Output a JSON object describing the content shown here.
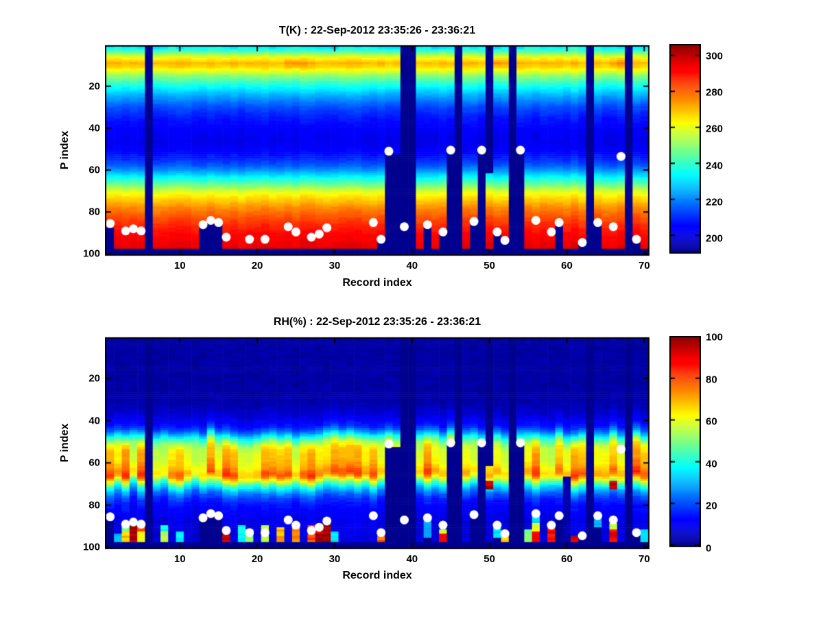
{
  "figure": {
    "background": "#ffffff",
    "text_color": "#000000"
  },
  "chart_data": {
    "note": "two stacked heatmaps, see charts array"
  },
  "charts": [
    {
      "id": "temperature",
      "type": "heatmap",
      "title": "T(K) : 22-Sep-2012 23:35:26 - 23:36:21",
      "xlabel": "Record index",
      "ylabel": "P index",
      "x_ticks": [
        10,
        20,
        30,
        40,
        50,
        60,
        70
      ],
      "y_ticks": [
        20,
        40,
        60,
        80,
        100
      ],
      "x_range": [
        1,
        70
      ],
      "y_range": [
        1,
        100
      ],
      "y_axis_reversed": true,
      "n_records": 70,
      "n_levels": 100,
      "colormap": "jet",
      "missing_color": "#00008F",
      "marker_color": "#FFFFFF",
      "colorbar": {
        "ticks": [
          200,
          220,
          240,
          260,
          280,
          300
        ],
        "min": 191,
        "max": 306
      },
      "default_surface": 97,
      "profile": [
        [
          1,
          231
        ],
        [
          3,
          240
        ],
        [
          5,
          253
        ],
        [
          7,
          264
        ],
        [
          9,
          271
        ],
        [
          11,
          267
        ],
        [
          13,
          259
        ],
        [
          15,
          250
        ],
        [
          17,
          244
        ],
        [
          19,
          238
        ],
        [
          21,
          233
        ],
        [
          24,
          226
        ],
        [
          27,
          220
        ],
        [
          30,
          214
        ],
        [
          35,
          208
        ],
        [
          40,
          204
        ],
        [
          45,
          202
        ],
        [
          48,
          202
        ],
        [
          52,
          206
        ],
        [
          55,
          210
        ],
        [
          58,
          216
        ],
        [
          60,
          222
        ],
        [
          62,
          229
        ],
        [
          64,
          236
        ],
        [
          66,
          243
        ],
        [
          68,
          250
        ],
        [
          70,
          258
        ],
        [
          72,
          264
        ],
        [
          74,
          268
        ],
        [
          76,
          272
        ],
        [
          78,
          276
        ],
        [
          80,
          279
        ],
        [
          83,
          283
        ],
        [
          86,
          287
        ],
        [
          89,
          290
        ],
        [
          92,
          293
        ],
        [
          95,
          295
        ],
        [
          97,
          296
        ]
      ],
      "missing_records": [
        6,
        39,
        40,
        46,
        53,
        63,
        68
      ],
      "surfaces": {
        "1": 87,
        "13": 86,
        "14": 84,
        "15": 85,
        "36": 93,
        "37": 52,
        "38": 52,
        "42": 87,
        "44": 90,
        "45": 51,
        "48": 85,
        "49": 51,
        "51": 90,
        "52": 94,
        "54": 51,
        "59": 86,
        "62": 95,
        "64": 85,
        "69": 94
      },
      "top_start": {
        "50": 62
      },
      "warm_spots": {
        "p_range": [
          6,
          12
        ],
        "records": {
          "24": 4,
          "25": 5,
          "26": 3,
          "51": 6,
          "52": 4,
          "66": 5,
          "67": 6
        }
      },
      "markers": [
        [
          1,
          85.5
        ],
        [
          3,
          89
        ],
        [
          4,
          88
        ],
        [
          5,
          89
        ],
        [
          13,
          86
        ],
        [
          14,
          84
        ],
        [
          15,
          85
        ],
        [
          16,
          92
        ],
        [
          19,
          93
        ],
        [
          21,
          93
        ],
        [
          24,
          87
        ],
        [
          25,
          89.5
        ],
        [
          27,
          92
        ],
        [
          28,
          90.5
        ],
        [
          29,
          87.5
        ],
        [
          35,
          85
        ],
        [
          36,
          93
        ],
        [
          37,
          51
        ],
        [
          39,
          87
        ],
        [
          42,
          86
        ],
        [
          44,
          89.5
        ],
        [
          45,
          50.5
        ],
        [
          48,
          84.5
        ],
        [
          49,
          50.5
        ],
        [
          51,
          89.5
        ],
        [
          52,
          93.5
        ],
        [
          54,
          50.5
        ],
        [
          56,
          84
        ],
        [
          58,
          89.5
        ],
        [
          59,
          85
        ],
        [
          62,
          94.5
        ],
        [
          64,
          85
        ],
        [
          66,
          87
        ],
        [
          67,
          53.5
        ],
        [
          69,
          93
        ]
      ]
    },
    {
      "id": "relative-humidity",
      "type": "heatmap",
      "title": "RH(%) : 22-Sep-2012 23:35:26 - 23:36:21",
      "xlabel": "Record index",
      "ylabel": "P index",
      "x_ticks": [
        10,
        20,
        30,
        40,
        50,
        60,
        70
      ],
      "y_ticks": [
        20,
        40,
        60,
        80,
        100
      ],
      "x_range": [
        1,
        70
      ],
      "y_range": [
        1,
        100
      ],
      "y_axis_reversed": true,
      "n_records": 70,
      "n_levels": 100,
      "colormap": "jet",
      "missing_color": "#00008F",
      "marker_color": "#FFFFFF",
      "colorbar": {
        "ticks": [
          0,
          20,
          40,
          60,
          80,
          100
        ],
        "min": 0,
        "max": 100
      },
      "default_surface": 97,
      "profile": [
        [
          1,
          2
        ],
        [
          25,
          2
        ],
        [
          32,
          3
        ],
        [
          36,
          6
        ],
        [
          40,
          10
        ],
        [
          43,
          16
        ],
        [
          45,
          24
        ],
        [
          47,
          36
        ],
        [
          49,
          48
        ],
        [
          51,
          57
        ],
        [
          53,
          62
        ],
        [
          56,
          64
        ],
        [
          58,
          64
        ],
        [
          60,
          66
        ],
        [
          62,
          68
        ],
        [
          64,
          73
        ],
        [
          65,
          74
        ],
        [
          66,
          72
        ],
        [
          67,
          65
        ],
        [
          68,
          58
        ],
        [
          69,
          50
        ],
        [
          70,
          44
        ],
        [
          71,
          38
        ],
        [
          72,
          33
        ],
        [
          74,
          25
        ],
        [
          76,
          19
        ],
        [
          78,
          15
        ],
        [
          80,
          13
        ],
        [
          83,
          11
        ],
        [
          86,
          9
        ],
        [
          90,
          8
        ],
        [
          94,
          8
        ],
        [
          97,
          8
        ]
      ],
      "missing_records": [
        6,
        39,
        40,
        46,
        53,
        63,
        68
      ],
      "surfaces": {
        "1": 87,
        "13": 86,
        "14": 84,
        "15": 85,
        "36": 93,
        "37": 52,
        "38": 52,
        "42": 87,
        "44": 90,
        "45": 51,
        "48": 85,
        "49": 51,
        "51": 90,
        "52": 94,
        "54": 51,
        "59": 86,
        "62": 95,
        "64": 85,
        "69": 94
      },
      "top_start": {
        "50": 62
      },
      "patches": [
        [
          2,
          94,
          97,
          30
        ],
        [
          3,
          90,
          93,
          50
        ],
        [
          3,
          93,
          97,
          68
        ],
        [
          4,
          90,
          97,
          97
        ],
        [
          5,
          90,
          93,
          78
        ],
        [
          5,
          93,
          97,
          60
        ],
        [
          8,
          90,
          93,
          38
        ],
        [
          8,
          93,
          97,
          55
        ],
        [
          10,
          93,
          97,
          35
        ],
        [
          16,
          93,
          97,
          95
        ],
        [
          18,
          90,
          97,
          38
        ],
        [
          19,
          92,
          97,
          50
        ],
        [
          21,
          90,
          97,
          55
        ],
        [
          23,
          91,
          97,
          70
        ],
        [
          25,
          90,
          97,
          75
        ],
        [
          27,
          90,
          97,
          80
        ],
        [
          28,
          89,
          97,
          95
        ],
        [
          29,
          88,
          97,
          97
        ],
        [
          30,
          93,
          97,
          35
        ],
        [
          36,
          94,
          97,
          78
        ],
        [
          42,
          87,
          95,
          28
        ],
        [
          44,
          92,
          94,
          55
        ],
        [
          44,
          94,
          97,
          90
        ],
        [
          50,
          69,
          72,
          95
        ],
        [
          51,
          91,
          95,
          35
        ],
        [
          52,
          95,
          97,
          70
        ],
        [
          55,
          92,
          97,
          50
        ],
        [
          56,
          85,
          89,
          35
        ],
        [
          56,
          89,
          93,
          60
        ],
        [
          56,
          93,
          97,
          88
        ],
        [
          58,
          91,
          97,
          88
        ],
        [
          60,
          67,
          97,
          3
        ],
        [
          61,
          95,
          97,
          95
        ],
        [
          64,
          86,
          90,
          30
        ],
        [
          66,
          69,
          72,
          95
        ],
        [
          66,
          89,
          92,
          55
        ],
        [
          66,
          92,
          97,
          90
        ],
        [
          70,
          92,
          97,
          35
        ]
      ],
      "markers": [
        [
          1,
          85.5
        ],
        [
          3,
          89
        ],
        [
          4,
          88
        ],
        [
          5,
          89
        ],
        [
          13,
          86
        ],
        [
          14,
          84
        ],
        [
          15,
          85
        ],
        [
          16,
          92
        ],
        [
          19,
          93
        ],
        [
          21,
          93
        ],
        [
          24,
          87
        ],
        [
          25,
          89.5
        ],
        [
          27,
          92
        ],
        [
          28,
          90.5
        ],
        [
          29,
          87.5
        ],
        [
          35,
          85
        ],
        [
          36,
          93
        ],
        [
          37,
          51
        ],
        [
          39,
          87
        ],
        [
          42,
          86
        ],
        [
          44,
          89.5
        ],
        [
          45,
          50.5
        ],
        [
          48,
          84.5
        ],
        [
          49,
          50.5
        ],
        [
          51,
          89.5
        ],
        [
          52,
          93.5
        ],
        [
          54,
          50.5
        ],
        [
          56,
          84
        ],
        [
          58,
          89.5
        ],
        [
          59,
          85
        ],
        [
          62,
          94.5
        ],
        [
          64,
          85
        ],
        [
          66,
          87
        ],
        [
          67,
          53.5
        ],
        [
          69,
          93
        ]
      ]
    }
  ]
}
